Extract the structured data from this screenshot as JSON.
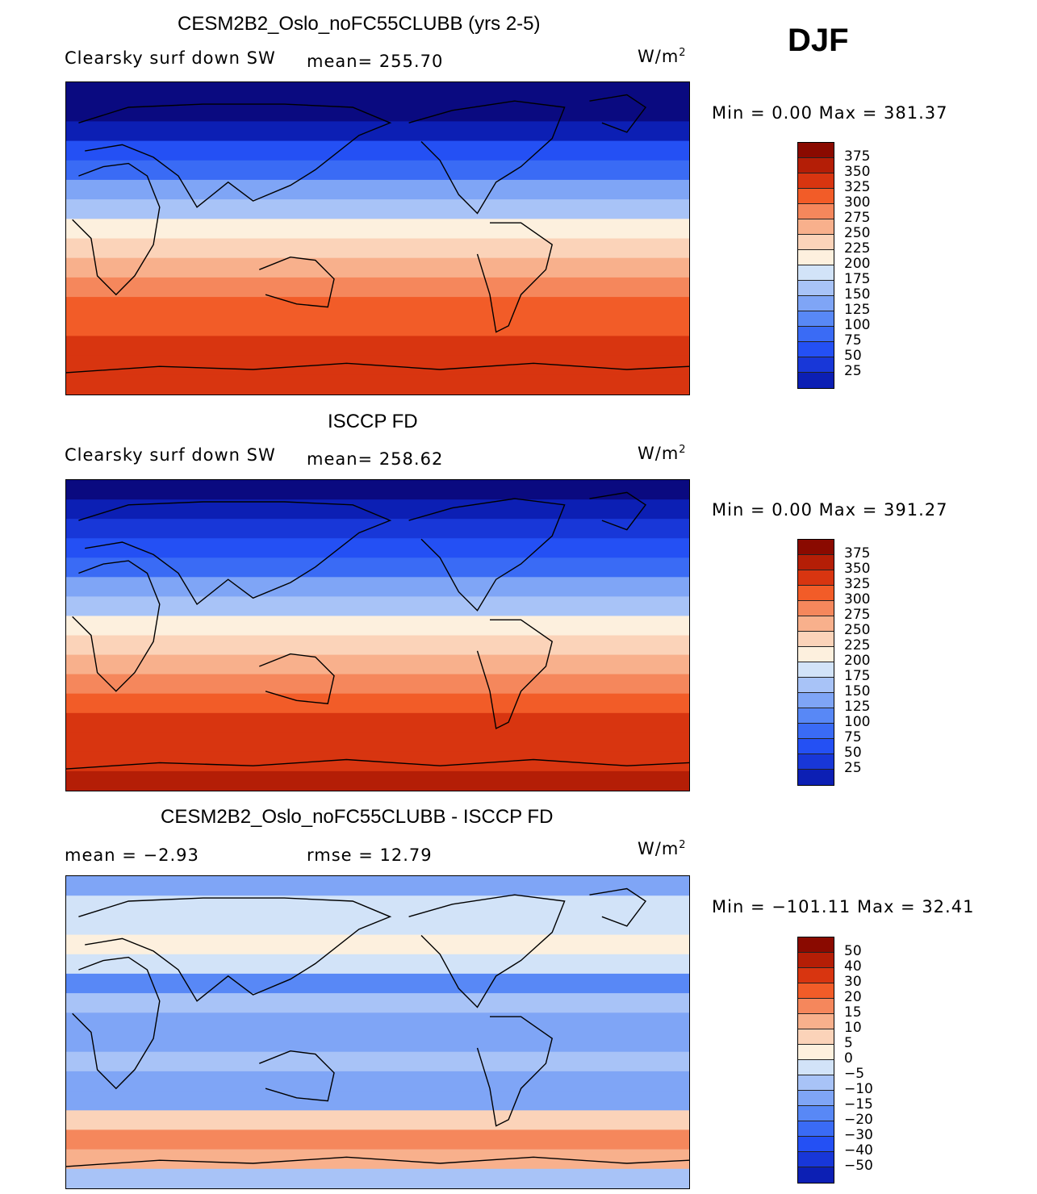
{
  "season": "DJF",
  "colors": {
    "abs": [
      "#0a0a80",
      "#0c1fb4",
      "#1837d8",
      "#2450f4",
      "#3a6bf5",
      "#5888f6",
      "#7fa5f6",
      "#a8c3f7",
      "#d2e3f8",
      "#fdf0de",
      "#fbd3b9",
      "#f8b08c",
      "#f5875c",
      "#f25c28",
      "#d83510",
      "#b41e06",
      "#8a0a00"
    ],
    "diff": [
      "#0a0a80",
      "#0c1fb4",
      "#1837d8",
      "#2450f4",
      "#3a6bf5",
      "#5888f6",
      "#7fa5f6",
      "#a8c3f7",
      "#d2e3f8",
      "#fdf0de",
      "#fbd3b9",
      "#f8b08c",
      "#f5875c",
      "#f25c28",
      "#d83510",
      "#b41e06",
      "#8a0a00"
    ]
  },
  "chart_data": [
    {
      "type": "heatmap",
      "title": "CESM2B2_Oslo_noFC55CLUBB (yrs 2-5)",
      "variable": "Clearsky surf down SW",
      "mean_label": "mean= 255.70",
      "units": "W/m",
      "units_exp": "2",
      "min_max": "Min =    0.00 Max = 381.37",
      "levels": [
        "375",
        "350",
        "325",
        "300",
        "275",
        "250",
        "225",
        "200",
        "175",
        "150",
        "125",
        "100",
        "75",
        "50",
        "25"
      ],
      "zonal_band_values": [
        0,
        20,
        45,
        80,
        115,
        155,
        190,
        225,
        255,
        285,
        310,
        330,
        345,
        355,
        362,
        370
      ]
    },
    {
      "type": "heatmap",
      "title": "ISCCP FD",
      "variable": "Clearsky surf down SW",
      "mean_label": "mean= 258.62",
      "units": "W/m",
      "units_exp": "2",
      "min_max": "Min =    0.00 Max = 391.27",
      "levels": [
        "375",
        "350",
        "325",
        "300",
        "275",
        "250",
        "225",
        "200",
        "175",
        "150",
        "125",
        "100",
        "75",
        "50",
        "25"
      ],
      "zonal_band_values": [
        0,
        25,
        50,
        85,
        120,
        160,
        195,
        230,
        260,
        290,
        315,
        335,
        350,
        360,
        370,
        385
      ]
    },
    {
      "type": "heatmap",
      "title": "CESM2B2_Oslo_noFC55CLUBB - ISCCP FD",
      "mean_label": "mean =   −2.93",
      "rmse_label": "rmse =   12.79",
      "units": "W/m",
      "units_exp": "2",
      "min_max": "Min = −101.11 Max =   32.41",
      "levels": [
        "50",
        "40",
        "30",
        "20",
        "15",
        "10",
        "5",
        "0",
        "−5",
        "−10",
        "−15",
        "−20",
        "−30",
        "−40",
        "−50"
      ],
      "zonal_band_values": [
        -8,
        3,
        4,
        6,
        2,
        -12,
        -4,
        -6,
        -8,
        -5,
        -7,
        -6,
        12,
        22,
        18,
        -5
      ]
    }
  ]
}
